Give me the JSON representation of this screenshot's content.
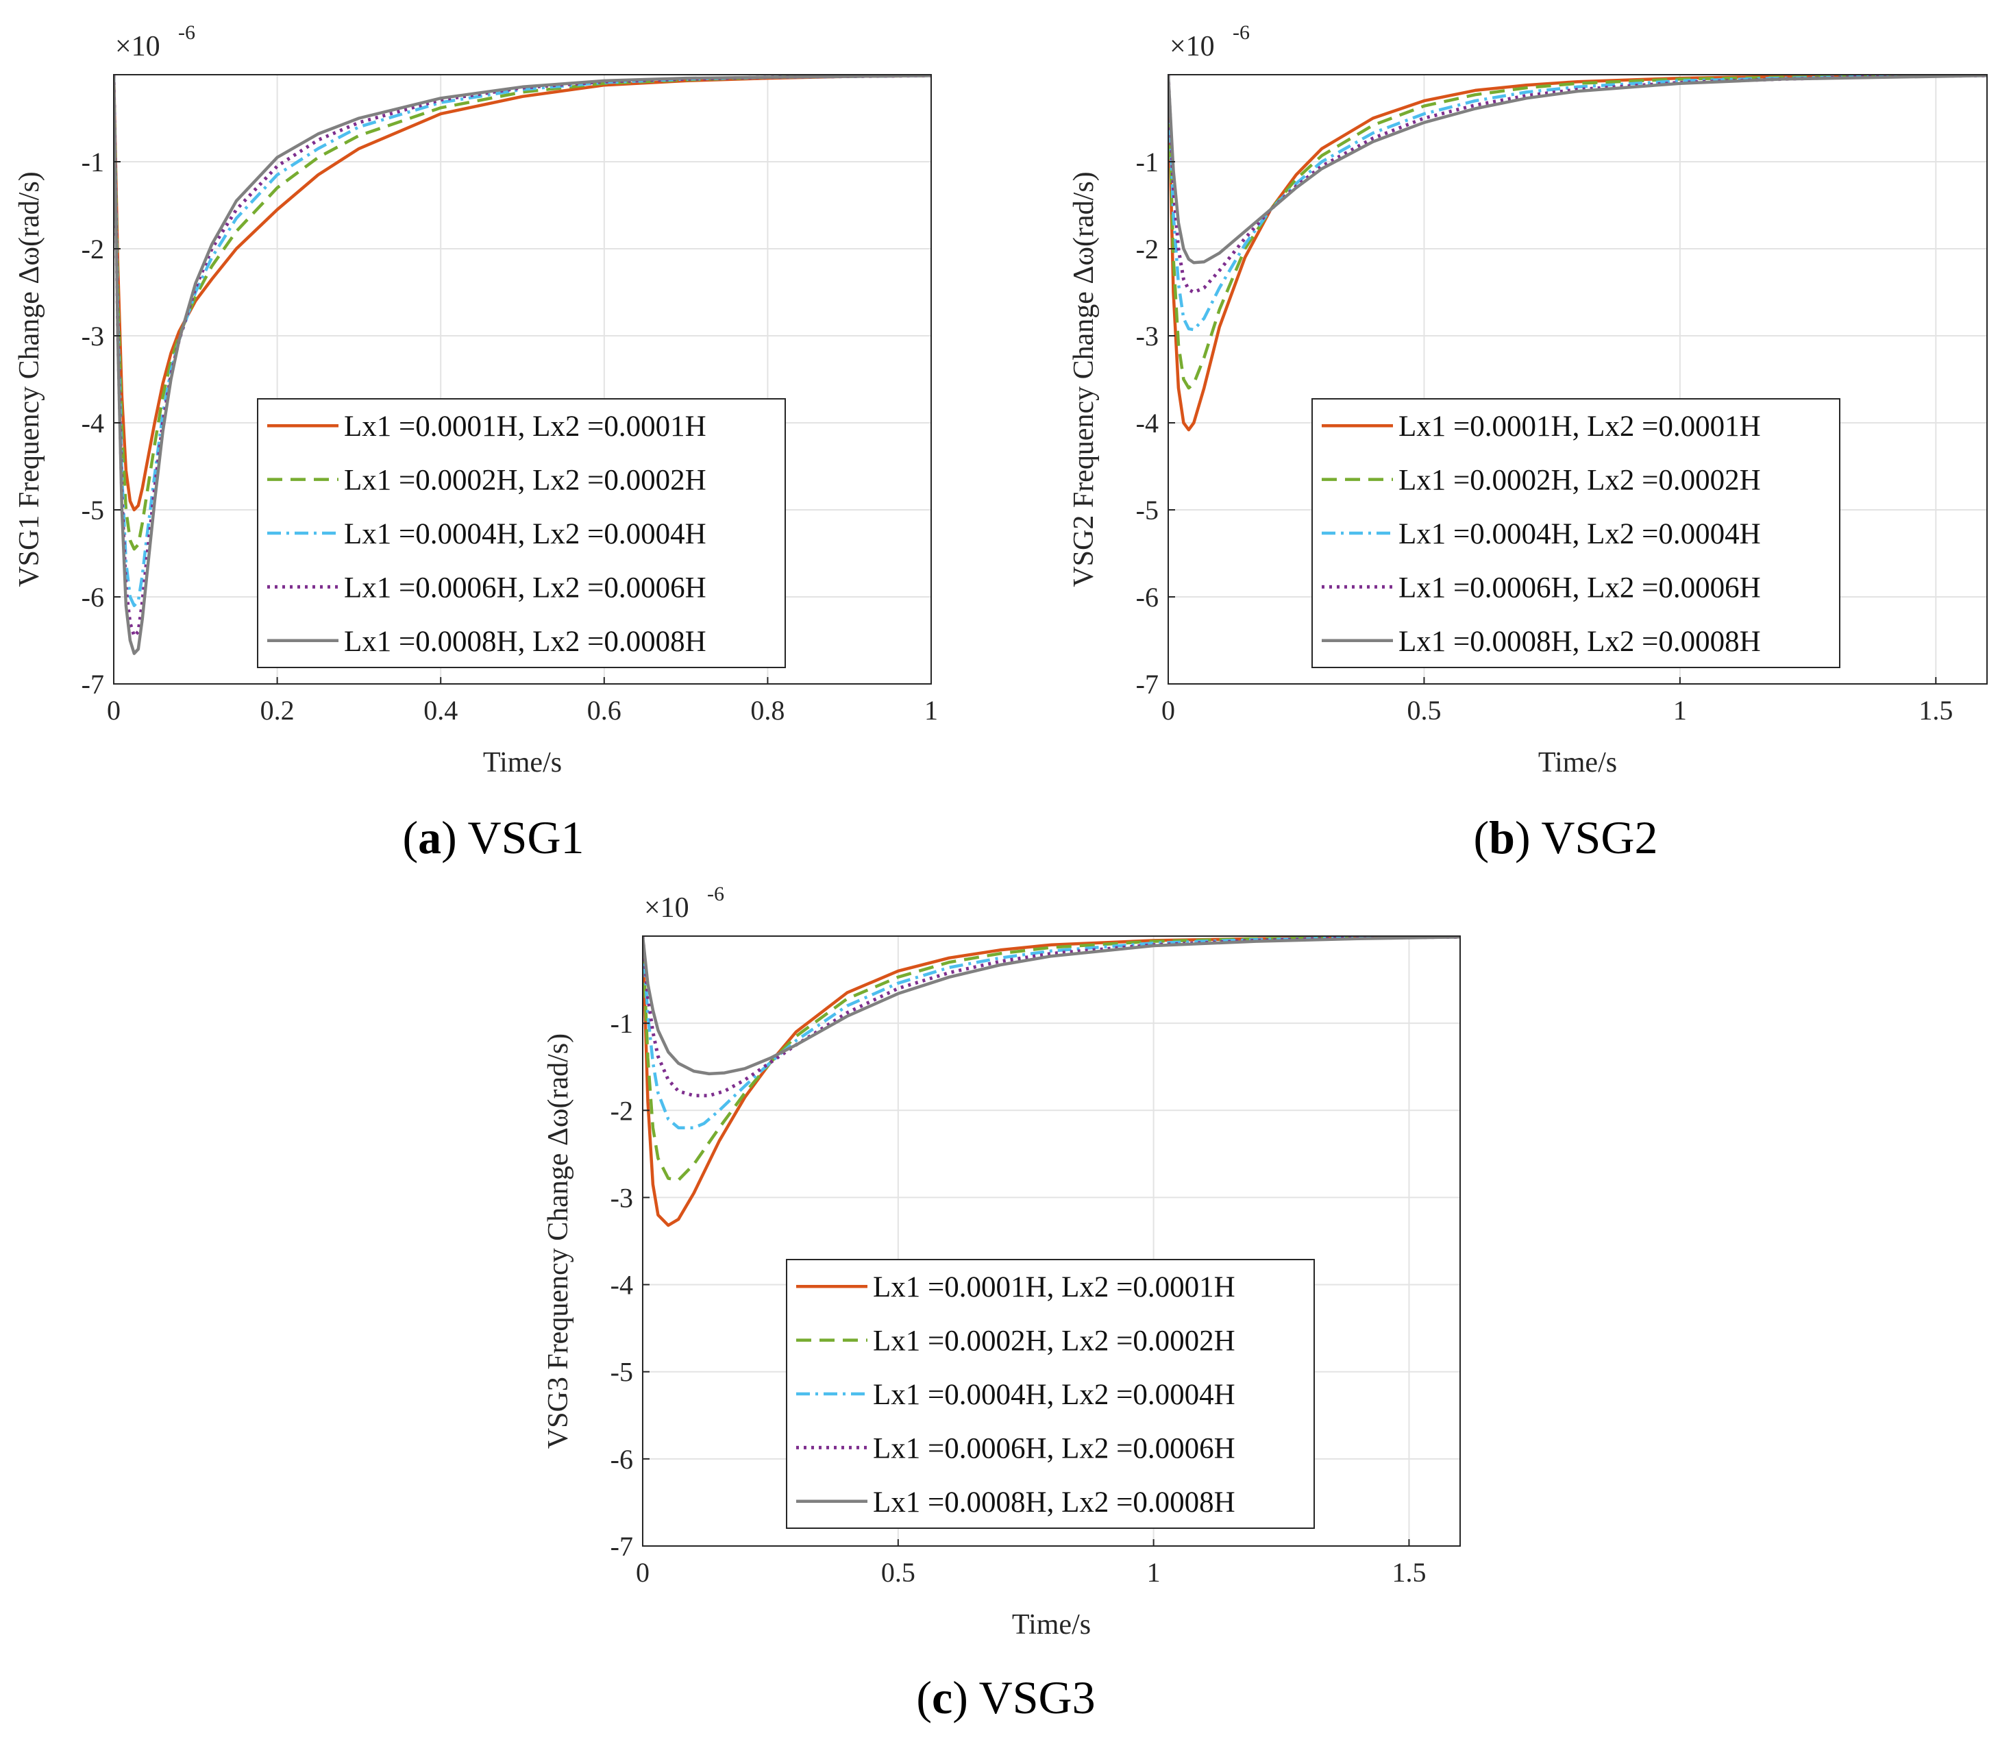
{
  "chart_data": [
    {
      "type": "line",
      "panel_letter": "a",
      "caption": "VSG1",
      "xlabel": "Time/s",
      "ylabel": "VSG1 Frequency Change Δω(rad/s)",
      "y_exponent_base": "×10",
      "y_exponent_power": "-6",
      "xlim": [
        0,
        1
      ],
      "ylim": [
        -7,
        0
      ],
      "xticks": [
        0,
        0.2,
        0.4,
        0.6,
        0.8,
        1
      ],
      "xtick_labels": [
        "0",
        "0.2",
        "0.4",
        "0.6",
        "0.8",
        "1"
      ],
      "yticks": [
        -7,
        -6,
        -5,
        -4,
        -3,
        -2,
        -1
      ],
      "ytick_labels": [
        "-7",
        "-6",
        "-5",
        "-4",
        "-3",
        "-2",
        "-1"
      ],
      "grid": true,
      "legend_location": "lower-right",
      "series": [
        {
          "name": "Lx1 =0.0001H, Lx2 =0.0001H",
          "color": "#D95319",
          "dash": "solid",
          "x": [
            0,
            0.005,
            0.01,
            0.015,
            0.02,
            0.025,
            0.03,
            0.035,
            0.04,
            0.05,
            0.06,
            0.07,
            0.08,
            0.1,
            0.12,
            0.15,
            0.2,
            0.25,
            0.3,
            0.4,
            0.5,
            0.6,
            0.7,
            0.8,
            0.9,
            1.0
          ],
          "y": [
            0,
            -2.2,
            -3.7,
            -4.55,
            -4.9,
            -5.0,
            -4.95,
            -4.75,
            -4.5,
            -4.0,
            -3.55,
            -3.2,
            -2.95,
            -2.6,
            -2.35,
            -2.0,
            -1.55,
            -1.15,
            -0.85,
            -0.45,
            -0.25,
            -0.12,
            -0.07,
            -0.04,
            -0.02,
            -0.01
          ]
        },
        {
          "name": "Lx1 =0.0002H, Lx2 =0.0002H",
          "color": "#77AC30",
          "dash": "dashed",
          "x": [
            0,
            0.005,
            0.01,
            0.015,
            0.02,
            0.025,
            0.03,
            0.035,
            0.04,
            0.05,
            0.06,
            0.07,
            0.08,
            0.1,
            0.12,
            0.15,
            0.2,
            0.25,
            0.3,
            0.4,
            0.5,
            0.6,
            0.7,
            0.8,
            0.9,
            1.0
          ],
          "y": [
            0,
            -2.5,
            -4.1,
            -5.0,
            -5.35,
            -5.45,
            -5.4,
            -5.15,
            -4.85,
            -4.25,
            -3.7,
            -3.3,
            -3.0,
            -2.55,
            -2.2,
            -1.8,
            -1.3,
            -0.95,
            -0.7,
            -0.38,
            -0.2,
            -0.1,
            -0.06,
            -0.03,
            -0.02,
            -0.01
          ]
        },
        {
          "name": "Lx1 =0.0004H, Lx2 =0.0004H",
          "color": "#4DBEEE",
          "dash": "dashdot",
          "x": [
            0,
            0.005,
            0.01,
            0.015,
            0.02,
            0.025,
            0.03,
            0.035,
            0.04,
            0.05,
            0.06,
            0.07,
            0.08,
            0.1,
            0.12,
            0.15,
            0.2,
            0.25,
            0.3,
            0.4,
            0.5,
            0.6,
            0.7,
            0.8,
            0.9,
            1.0
          ],
          "y": [
            0,
            -2.8,
            -4.6,
            -5.6,
            -6.0,
            -6.1,
            -6.05,
            -5.75,
            -5.35,
            -4.6,
            -3.9,
            -3.4,
            -3.05,
            -2.5,
            -2.1,
            -1.65,
            -1.15,
            -0.85,
            -0.6,
            -0.32,
            -0.17,
            -0.09,
            -0.05,
            -0.03,
            -0.02,
            -0.01
          ]
        },
        {
          "name": "Lx1 =0.0006H, Lx2 =0.0006H",
          "color": "#7E2F8E",
          "dash": "dotted",
          "x": [
            0,
            0.005,
            0.01,
            0.015,
            0.02,
            0.025,
            0.03,
            0.035,
            0.04,
            0.05,
            0.06,
            0.07,
            0.08,
            0.1,
            0.12,
            0.15,
            0.2,
            0.25,
            0.3,
            0.4,
            0.5,
            0.6,
            0.7,
            0.8,
            0.9,
            1.0
          ],
          "y": [
            0,
            -2.95,
            -4.85,
            -5.9,
            -6.3,
            -6.45,
            -6.4,
            -6.05,
            -5.6,
            -4.75,
            -4.0,
            -3.45,
            -3.05,
            -2.45,
            -2.0,
            -1.55,
            -1.05,
            -0.75,
            -0.55,
            -0.29,
            -0.15,
            -0.08,
            -0.05,
            -0.03,
            -0.02,
            -0.01
          ]
        },
        {
          "name": "Lx1 =0.0008H, Lx2 =0.0008H",
          "color": "#808080",
          "dash": "solid",
          "x": [
            0,
            0.005,
            0.01,
            0.015,
            0.02,
            0.025,
            0.03,
            0.035,
            0.04,
            0.05,
            0.06,
            0.07,
            0.08,
            0.1,
            0.12,
            0.15,
            0.2,
            0.25,
            0.3,
            0.4,
            0.5,
            0.6,
            0.7,
            0.8,
            0.9,
            1.0
          ],
          "y": [
            0,
            -3.05,
            -5.0,
            -6.1,
            -6.5,
            -6.65,
            -6.6,
            -6.25,
            -5.8,
            -4.9,
            -4.1,
            -3.5,
            -3.05,
            -2.4,
            -1.95,
            -1.45,
            -0.95,
            -0.68,
            -0.5,
            -0.27,
            -0.14,
            -0.07,
            -0.04,
            -0.03,
            -0.02,
            -0.01
          ]
        }
      ]
    },
    {
      "type": "line",
      "panel_letter": "b",
      "caption": "VSG2",
      "xlabel": "Time/s",
      "ylabel": "VSG2 Frequency Change Δω(rad/s)",
      "y_exponent_base": "×10",
      "y_exponent_power": "-6",
      "xlim": [
        0,
        1.6
      ],
      "ylim": [
        -7,
        0
      ],
      "xticks": [
        0,
        0.5,
        1,
        1.5
      ],
      "xtick_labels": [
        "0",
        "0.5",
        "1",
        "1.5"
      ],
      "yticks": [
        -7,
        -6,
        -5,
        -4,
        -3,
        -2,
        -1
      ],
      "ytick_labels": [
        "-7",
        "-6",
        "-5",
        "-4",
        "-3",
        "-2",
        "-1"
      ],
      "grid": true,
      "legend_location": "lower-right",
      "series": [
        {
          "name": "Lx1 =0.0001H, Lx2 =0.0001H",
          "color": "#D95319",
          "dash": "solid",
          "x": [
            0,
            0.01,
            0.02,
            0.03,
            0.04,
            0.05,
            0.07,
            0.1,
            0.15,
            0.2,
            0.25,
            0.3,
            0.4,
            0.5,
            0.6,
            0.7,
            0.8,
            1.0,
            1.2,
            1.4,
            1.6
          ],
          "y": [
            0,
            -2.5,
            -3.6,
            -4.0,
            -4.08,
            -4.0,
            -3.6,
            -2.9,
            -2.1,
            -1.55,
            -1.15,
            -0.85,
            -0.5,
            -0.3,
            -0.18,
            -0.12,
            -0.08,
            -0.04,
            -0.02,
            -0.01,
            -0.01
          ]
        },
        {
          "name": "Lx1 =0.0002H, Lx2 =0.0002H",
          "color": "#77AC30",
          "dash": "dashed",
          "x": [
            0,
            0.01,
            0.02,
            0.03,
            0.04,
            0.05,
            0.07,
            0.1,
            0.15,
            0.2,
            0.25,
            0.3,
            0.4,
            0.5,
            0.6,
            0.7,
            0.8,
            1.0,
            1.2,
            1.4,
            1.6
          ],
          "y": [
            0,
            -2.1,
            -3.1,
            -3.5,
            -3.6,
            -3.55,
            -3.25,
            -2.7,
            -2.0,
            -1.55,
            -1.2,
            -0.93,
            -0.58,
            -0.36,
            -0.23,
            -0.15,
            -0.1,
            -0.05,
            -0.03,
            -0.02,
            -0.01
          ]
        },
        {
          "name": "Lx1 =0.0004H, Lx2 =0.0004H",
          "color": "#4DBEEE",
          "dash": "dashdot",
          "x": [
            0,
            0.01,
            0.02,
            0.03,
            0.04,
            0.05,
            0.07,
            0.1,
            0.15,
            0.2,
            0.25,
            0.3,
            0.4,
            0.5,
            0.6,
            0.7,
            0.8,
            1.0,
            1.2,
            1.4,
            1.6
          ],
          "y": [
            0,
            -1.6,
            -2.4,
            -2.8,
            -2.92,
            -2.93,
            -2.8,
            -2.45,
            -1.95,
            -1.55,
            -1.25,
            -1.0,
            -0.67,
            -0.45,
            -0.3,
            -0.2,
            -0.14,
            -0.07,
            -0.04,
            -0.02,
            -0.01
          ]
        },
        {
          "name": "Lx1 =0.0006H, Lx2 =0.0006H",
          "color": "#7E2F8E",
          "dash": "dotted",
          "x": [
            0,
            0.01,
            0.02,
            0.03,
            0.04,
            0.05,
            0.07,
            0.1,
            0.15,
            0.2,
            0.25,
            0.3,
            0.4,
            0.5,
            0.6,
            0.7,
            0.8,
            1.0,
            1.2,
            1.4,
            1.6
          ],
          "y": [
            0,
            -1.3,
            -2.0,
            -2.35,
            -2.47,
            -2.5,
            -2.45,
            -2.25,
            -1.88,
            -1.55,
            -1.28,
            -1.05,
            -0.73,
            -0.5,
            -0.35,
            -0.24,
            -0.17,
            -0.09,
            -0.05,
            -0.02,
            -0.01
          ]
        },
        {
          "name": "Lx1 =0.0008H, Lx2 =0.0008H",
          "color": "#808080",
          "dash": "solid",
          "x": [
            0,
            0.01,
            0.02,
            0.03,
            0.04,
            0.05,
            0.07,
            0.1,
            0.15,
            0.2,
            0.25,
            0.3,
            0.4,
            0.5,
            0.6,
            0.7,
            0.8,
            1.0,
            1.2,
            1.4,
            1.6
          ],
          "y": [
            0,
            -1.1,
            -1.7,
            -2.0,
            -2.12,
            -2.16,
            -2.15,
            -2.05,
            -1.8,
            -1.55,
            -1.3,
            -1.08,
            -0.77,
            -0.55,
            -0.39,
            -0.27,
            -0.19,
            -0.1,
            -0.05,
            -0.03,
            -0.01
          ]
        }
      ]
    },
    {
      "type": "line",
      "panel_letter": "c",
      "caption": "VSG3",
      "xlabel": "Time/s",
      "ylabel": "VSG3 Frequency Change Δω(rad/s)",
      "y_exponent_base": "×10",
      "y_exponent_power": "-6",
      "xlim": [
        0,
        1.6
      ],
      "ylim": [
        -7,
        0
      ],
      "xticks": [
        0,
        0.5,
        1,
        1.5
      ],
      "xtick_labels": [
        "0",
        "0.5",
        "1",
        "1.5"
      ],
      "yticks": [
        -7,
        -6,
        -5,
        -4,
        -3,
        -2,
        -1
      ],
      "ytick_labels": [
        "-7",
        "-6",
        "-5",
        "-4",
        "-3",
        "-2",
        "-1"
      ],
      "grid": true,
      "legend_location": "lower-right",
      "series": [
        {
          "name": "Lx1 =0.0001H, Lx2 =0.0001H",
          "color": "#D95319",
          "dash": "solid",
          "x": [
            0,
            0.01,
            0.02,
            0.03,
            0.05,
            0.07,
            0.1,
            0.15,
            0.2,
            0.25,
            0.3,
            0.4,
            0.5,
            0.6,
            0.7,
            0.8,
            1.0,
            1.2,
            1.4,
            1.6
          ],
          "y": [
            0,
            -1.9,
            -2.85,
            -3.2,
            -3.32,
            -3.25,
            -2.95,
            -2.35,
            -1.85,
            -1.45,
            -1.1,
            -0.65,
            -0.4,
            -0.25,
            -0.16,
            -0.1,
            -0.05,
            -0.03,
            -0.02,
            -0.01
          ]
        },
        {
          "name": "Lx1 =0.0002H, Lx2 =0.0002H",
          "color": "#77AC30",
          "dash": "dashed",
          "x": [
            0,
            0.01,
            0.02,
            0.03,
            0.05,
            0.07,
            0.1,
            0.15,
            0.2,
            0.25,
            0.3,
            0.4,
            0.5,
            0.6,
            0.7,
            0.8,
            1.0,
            1.2,
            1.4,
            1.6
          ],
          "y": [
            0,
            -1.4,
            -2.2,
            -2.55,
            -2.78,
            -2.8,
            -2.62,
            -2.2,
            -1.8,
            -1.45,
            -1.15,
            -0.72,
            -0.47,
            -0.3,
            -0.2,
            -0.13,
            -0.06,
            -0.03,
            -0.02,
            -0.01
          ]
        },
        {
          "name": "Lx1 =0.0004H, Lx2 =0.0004H",
          "color": "#4DBEEE",
          "dash": "dashdot",
          "x": [
            0,
            0.01,
            0.02,
            0.03,
            0.05,
            0.07,
            0.1,
            0.12,
            0.15,
            0.2,
            0.25,
            0.3,
            0.4,
            0.5,
            0.6,
            0.7,
            0.8,
            1.0,
            1.2,
            1.4,
            1.6
          ],
          "y": [
            0,
            -0.9,
            -1.45,
            -1.8,
            -2.1,
            -2.2,
            -2.2,
            -2.15,
            -2.0,
            -1.72,
            -1.45,
            -1.2,
            -0.8,
            -0.54,
            -0.36,
            -0.25,
            -0.17,
            -0.08,
            -0.04,
            -0.02,
            -0.01
          ]
        },
        {
          "name": "Lx1 =0.0006H, Lx2 =0.0006H",
          "color": "#7E2F8E",
          "dash": "dotted",
          "x": [
            0,
            0.01,
            0.02,
            0.03,
            0.05,
            0.07,
            0.1,
            0.13,
            0.16,
            0.2,
            0.25,
            0.3,
            0.4,
            0.5,
            0.6,
            0.7,
            0.8,
            1.0,
            1.2,
            1.4,
            1.6
          ],
          "y": [
            0,
            -0.7,
            -1.1,
            -1.38,
            -1.65,
            -1.78,
            -1.83,
            -1.83,
            -1.78,
            -1.65,
            -1.45,
            -1.25,
            -0.88,
            -0.6,
            -0.42,
            -0.29,
            -0.2,
            -0.1,
            -0.05,
            -0.02,
            -0.01
          ]
        },
        {
          "name": "Lx1 =0.0008H, Lx2 =0.0008H",
          "color": "#808080",
          "dash": "solid",
          "x": [
            0,
            0.01,
            0.02,
            0.03,
            0.05,
            0.07,
            0.1,
            0.13,
            0.16,
            0.2,
            0.25,
            0.3,
            0.4,
            0.5,
            0.6,
            0.7,
            0.8,
            1.0,
            1.2,
            1.4,
            1.6
          ],
          "y": [
            0,
            -0.55,
            -0.85,
            -1.08,
            -1.33,
            -1.46,
            -1.55,
            -1.58,
            -1.57,
            -1.52,
            -1.4,
            -1.25,
            -0.92,
            -0.66,
            -0.47,
            -0.33,
            -0.23,
            -0.11,
            -0.06,
            -0.03,
            -0.01
          ]
        }
      ]
    }
  ]
}
